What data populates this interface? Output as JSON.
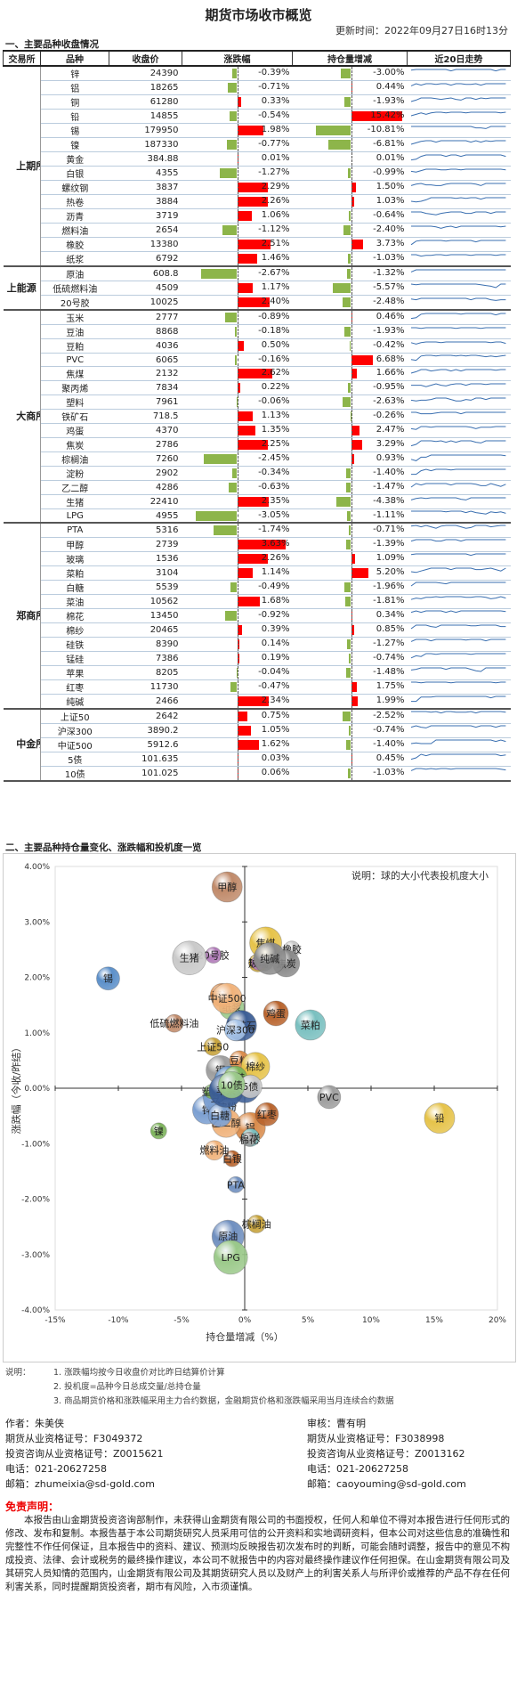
{
  "header": {
    "title": "期货市场收市概览",
    "updated": "更新时间：2022年09月27日16时13分"
  },
  "section1": "一、主要品种收盘情况",
  "section2": "二、主要品种持仓量变化、涨跌幅和投机度一览",
  "table": {
    "columns": [
      "交易所",
      "品种",
      "收盘价",
      "涨跌幅",
      "持仓量增减",
      "近20日走势"
    ],
    "groups": [
      {
        "exchange": "上期所",
        "rows": [
          [
            "锌",
            "24390",
            -0.39,
            -3.0
          ],
          [
            "铝",
            "18265",
            -0.71,
            0.44
          ],
          [
            "铜",
            "61280",
            0.33,
            -1.93
          ],
          [
            "铅",
            "14855",
            -0.54,
            15.42
          ],
          [
            "锡",
            "179950",
            1.98,
            -10.81
          ],
          [
            "镍",
            "187330",
            -0.77,
            -6.81
          ],
          [
            "黄金",
            "384.88",
            0.01,
            0.01
          ],
          [
            "白银",
            "4355",
            -1.27,
            -0.99
          ],
          [
            "螺纹钢",
            "3837",
            2.29,
            1.5
          ],
          [
            "热卷",
            "3884",
            2.26,
            1.03
          ],
          [
            "沥青",
            "3719",
            1.06,
            -0.64
          ],
          [
            "燃料油",
            "2654",
            -1.12,
            -2.4
          ],
          [
            "橡胶",
            "13380",
            2.51,
            3.73
          ],
          [
            "纸浆",
            "6792",
            1.46,
            -1.03
          ]
        ]
      },
      {
        "exchange": "上能源",
        "rows": [
          [
            "原油",
            "608.8",
            -2.67,
            -1.32
          ],
          [
            "低硫燃料油",
            "4509",
            1.17,
            -5.57
          ],
          [
            "20号胶",
            "10025",
            2.4,
            -2.48
          ]
        ]
      },
      {
        "exchange": "大商所",
        "rows": [
          [
            "玉米",
            "2777",
            -0.89,
            0.46
          ],
          [
            "豆油",
            "8868",
            -0.18,
            -1.93
          ],
          [
            "豆粕",
            "4036",
            0.5,
            -0.42
          ],
          [
            "PVC",
            "6065",
            -0.16,
            6.68
          ],
          [
            "焦煤",
            "2132",
            2.62,
            1.66
          ],
          [
            "聚丙烯",
            "7834",
            0.22,
            -0.95
          ],
          [
            "塑料",
            "7961",
            -0.06,
            -2.63
          ],
          [
            "铁矿石",
            "718.5",
            1.13,
            -0.26
          ],
          [
            "鸡蛋",
            "4370",
            1.35,
            2.47
          ],
          [
            "焦炭",
            "2786",
            2.25,
            3.29
          ],
          [
            "棕榈油",
            "7260",
            -2.45,
            0.93
          ],
          [
            "淀粉",
            "2902",
            -0.34,
            -1.4
          ],
          [
            "乙二醇",
            "4286",
            -0.63,
            -1.47
          ],
          [
            "生猪",
            "22410",
            2.35,
            -4.38
          ],
          [
            "LPG",
            "4955",
            -3.05,
            -1.11
          ]
        ]
      },
      {
        "exchange": "郑商所",
        "rows": [
          [
            "PTA",
            "5316",
            -1.74,
            -0.71
          ],
          [
            "甲醇",
            "2739",
            3.63,
            -1.39
          ],
          [
            "玻璃",
            "1536",
            2.26,
            1.09
          ],
          [
            "菜粕",
            "3104",
            1.14,
            5.2
          ],
          [
            "白糖",
            "5539",
            -0.49,
            -1.96
          ],
          [
            "菜油",
            "10562",
            1.68,
            -1.81
          ],
          [
            "棉花",
            "13450",
            -0.92,
            0.34
          ],
          [
            "棉纱",
            "20465",
            0.39,
            0.85
          ],
          [
            "硅铁",
            "8390",
            0.14,
            -1.27
          ],
          [
            "锰硅",
            "7386",
            0.19,
            -0.74
          ],
          [
            "苹果",
            "8205",
            -0.04,
            -1.48
          ],
          [
            "红枣",
            "11730",
            -0.47,
            1.75
          ],
          [
            "纯碱",
            "2466",
            2.34,
            1.99
          ]
        ]
      },
      {
        "exchange": "中金所",
        "rows": [
          [
            "上证50",
            "2642",
            0.75,
            -2.52
          ],
          [
            "沪深300",
            "3890.2",
            1.05,
            -0.74
          ],
          [
            "中证500",
            "5912.6",
            1.62,
            -1.4
          ],
          [
            "5债",
            "101.635",
            0.03,
            0.45
          ],
          [
            "10债",
            "101.025",
            0.06,
            -1.03
          ]
        ]
      }
    ]
  },
  "chart_data": {
    "type": "scatter",
    "title": "",
    "legend_note": "说明：球的大小代表投机度大小",
    "xlabel": "持仓量增减（%）",
    "ylabel": "涨跌幅（今收/昨结）",
    "xlim": [
      -15,
      20
    ],
    "ylim": [
      -4,
      4
    ],
    "xticks": [
      "-15%",
      "-10%",
      "-5%",
      "0%",
      "5%",
      "10%",
      "15%",
      "20%"
    ],
    "yticks": [
      "4.00%",
      "3.00%",
      "2.00%",
      "1.00%",
      "0.00%",
      "-1.00%",
      "-2.00%",
      "-3.00%",
      "-4.00%"
    ]
  },
  "notes": {
    "label": "说明：",
    "items": [
      "1. 涨跌幅均按今日收盘价对比昨日结算价计算",
      "2. 投机度=品种今日总成交量/总持仓量",
      "3. 商品期货价格和涨跌幅采用主力合约数据，金融期货价格和涨跌幅采用当月连续合约数据"
    ]
  },
  "author": {
    "lines": [
      "作者：朱美侠",
      "期货从业资格证号：F3049372",
      "投资咨询从业资格证号：Z0015621",
      "电话：021-20627258",
      "邮箱：zhumeixia@sd-gold.com"
    ]
  },
  "reviewer": {
    "lines": [
      "审核：曹有明",
      "期货从业资格证号：F3038998",
      "投资咨询从业资格证号：Z0013162",
      "电话：021-20627258",
      "邮箱：caoyouming@sd-gold.com"
    ]
  },
  "disclaimer": {
    "title": "免责声明：",
    "text": "本报告由山金期货投资咨询部制作，未获得山金期货有限公司的书面授权，任何人和单位不得对本报告进行任何形式的修改、发布和复制。本报告基于本公司期货研究人员采用可信的公开资料和实地调研资料，但本公司对这些信息的准确性和完整性不作任何保证，且本报告中的资料、建议、预测均反映报告初次发布时的判断，可能会随时调整，报告中的意见不构成投资、法律、会计或税务的最终操作建议，本公司不就报告中的内容对最终操作建议作任何担保。在山金期货有限公司及其研究人员知情的范围内，山金期货有限公司及其期货研究人员以及财产上的利害关系人与所评价或推荐的产品不存在任何利害关系，同时提醒期货投资者，期市有风险，入市须谨慎。"
  }
}
